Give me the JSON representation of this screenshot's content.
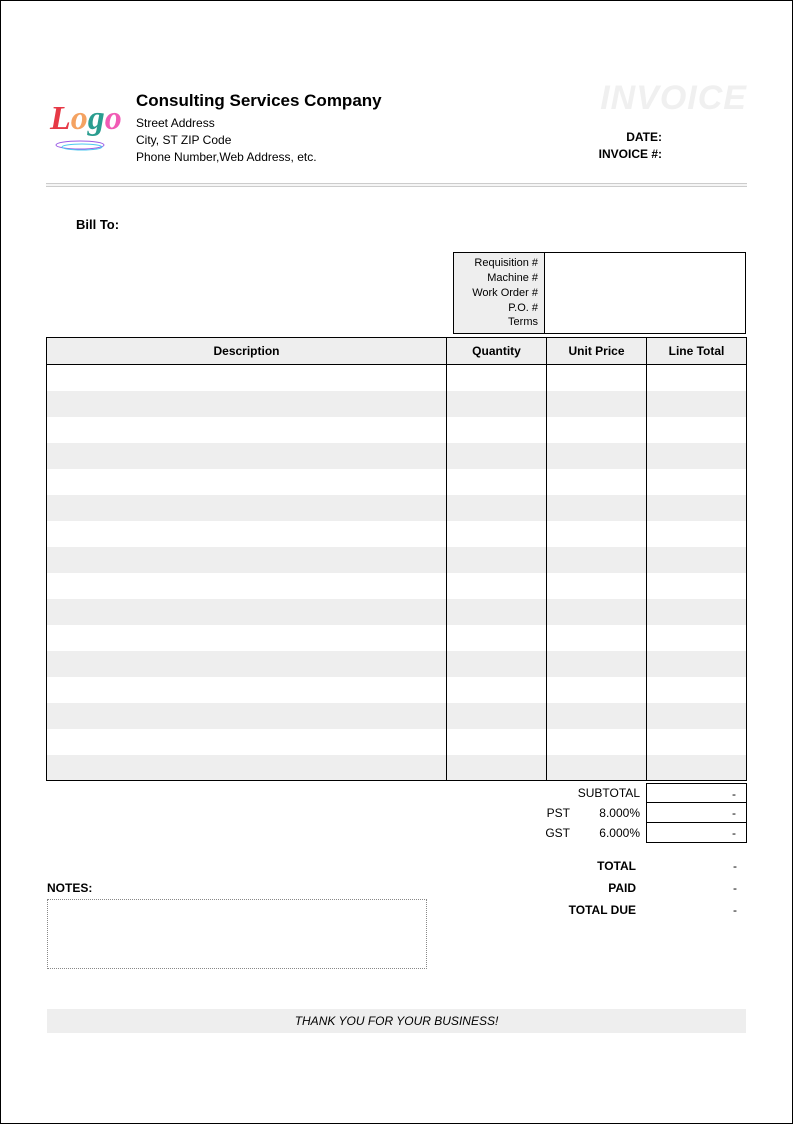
{
  "header": {
    "company_name": "Consulting Services Company",
    "addr1": "Street Address",
    "addr2": "City, ST  ZIP Code",
    "addr3": "Phone Number,Web Address, etc.",
    "invoice_title": "INVOICE",
    "date_label": "DATE:",
    "invoice_num_label": "INVOICE #:",
    "date_value": "",
    "invoice_num_value": ""
  },
  "billto": {
    "label": "Bill To:"
  },
  "req": {
    "labels": {
      "requisition": "Requisition #",
      "machine": "Machine #",
      "workorder": "Work Order #",
      "po": "P.O. #",
      "terms": "Terms"
    }
  },
  "table": {
    "headers": {
      "description": "Description",
      "quantity": "Quantity",
      "unit_price": "Unit Price",
      "line_total": "Line Total"
    },
    "row_count": 16,
    "colors": {
      "header_bg": "#eeeeee",
      "stripe_bg": "#eeeeee",
      "border": "#000000"
    }
  },
  "subtotals": {
    "subtotal_label": "SUBTOTAL",
    "subtotal_value": "-",
    "pst_label": "PST",
    "pst_pct": "8.000%",
    "pst_value": "-",
    "gst_label": "GST",
    "gst_pct": "6.000%",
    "gst_value": "-"
  },
  "totals": {
    "total_label": "TOTAL",
    "total_value": "-",
    "paid_label": "PAID",
    "paid_value": "-",
    "due_label": "TOTAL DUE",
    "due_value": "-"
  },
  "notes": {
    "label": "NOTES:"
  },
  "footer": {
    "thanks": "THANK YOU FOR YOUR BUSINESS!"
  },
  "logo": {
    "text": "Logo",
    "colors": [
      "#e63946",
      "#f4a261",
      "#2a9d8f",
      "#4cc9f0",
      "#9b5de5",
      "#f15bb5"
    ]
  }
}
